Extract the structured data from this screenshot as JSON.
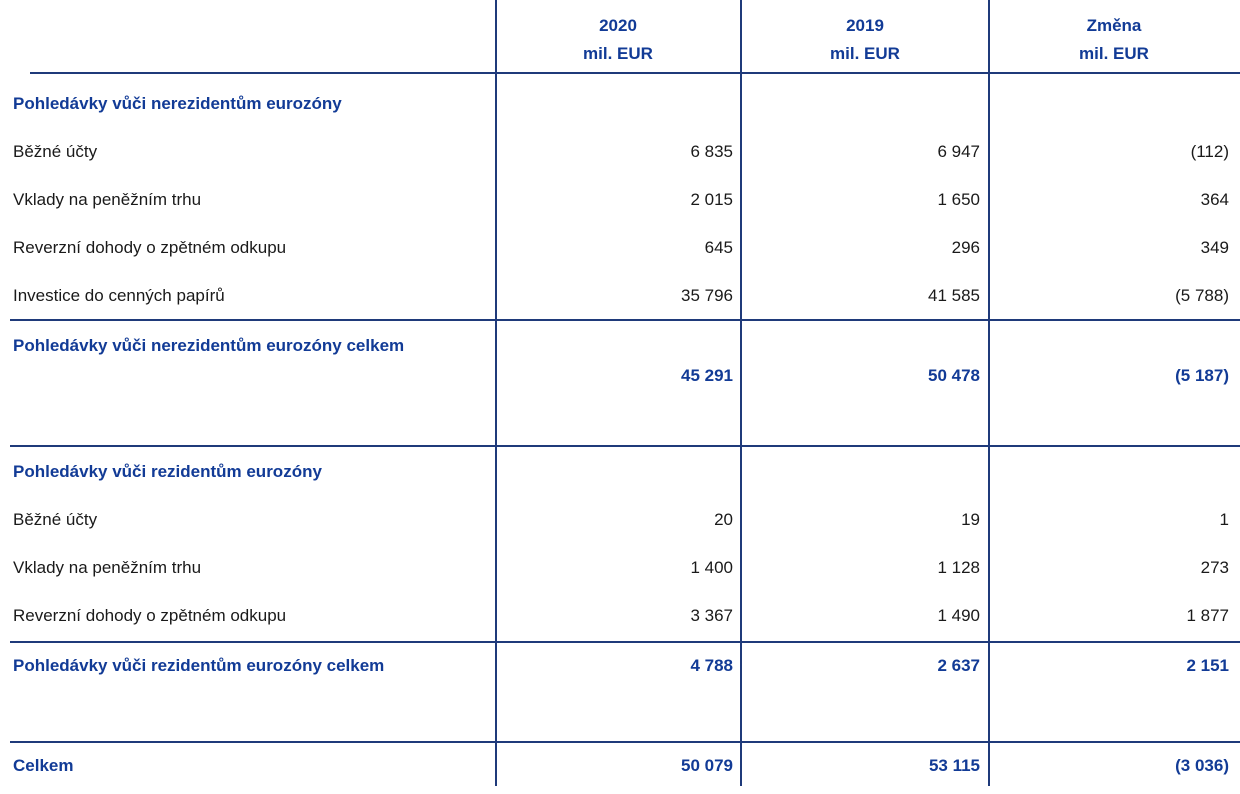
{
  "table": {
    "columns": [
      {
        "label": "2020",
        "unit": "mil. EUR"
      },
      {
        "label": "2019",
        "unit": "mil. EUR"
      },
      {
        "label": "Změna",
        "unit": "mil. EUR"
      }
    ],
    "sections": [
      {
        "title": "Pohledávky vůči nerezidentům eurozóny",
        "rows": [
          [
            "Běžné účty",
            "6 835",
            "6 947",
            "(112)"
          ],
          [
            "Vklady na peněžním trhu",
            "2 015",
            "1 650",
            "364"
          ],
          [
            "Reverzní dohody o zpětném odkupu",
            "645",
            "296",
            "349"
          ],
          [
            "Investice do cenných papírů",
            "35 796",
            "41 585",
            "(5 788)"
          ]
        ],
        "total": [
          "Pohledávky vůči nerezidentům eurozóny celkem",
          "45 291",
          "50 478",
          "(5 187)"
        ]
      },
      {
        "title": "Pohledávky vůči rezidentům eurozóny",
        "rows": [
          [
            "Běžné účty",
            "20",
            "19",
            "1"
          ],
          [
            "Vklady na peněžním trhu",
            "1 400",
            "1 128",
            "273"
          ],
          [
            "Reverzní dohody o zpětném odkupu",
            "3 367",
            "1 490",
            "1 877"
          ]
        ],
        "total": [
          "Pohledávky vůči rezidentům eurozóny celkem",
          "4 788",
          "2 637",
          "2 151"
        ]
      }
    ],
    "grand_total": [
      "Celkem",
      "50 079",
      "53 115",
      "(3 036)"
    ]
  }
}
